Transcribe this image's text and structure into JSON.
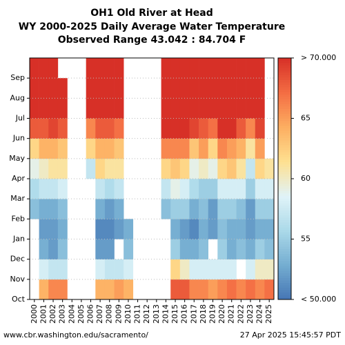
{
  "chart_data": {
    "type": "heatmap",
    "title": "OH1 Old River at Head",
    "subtitle": "WY 2000-2025 Daily Average Water Temperature",
    "annotation": "Observed Range 43.042 : 84.704 F",
    "source": "www.cbr.washington.edu/sacramento/",
    "timestamp": "27 Apr 2025 15:45:57 PDT",
    "x": [
      "2000",
      "2001",
      "2002",
      "2003",
      "2004",
      "2005",
      "2006",
      "2007",
      "2008",
      "2009",
      "2010",
      "2011",
      "2012",
      "2013",
      "2014",
      "2015",
      "2016",
      "2017",
      "2018",
      "2019",
      "2020",
      "2021",
      "2022",
      "2023",
      "2024",
      "2025"
    ],
    "categories": [
      "Oct",
      "Nov",
      "Dec",
      "Jan",
      "Feb",
      "Mar",
      "Apr",
      "May",
      "Jun",
      "Jul",
      "Aug",
      "Sep"
    ],
    "values": [
      [
        null,
        null,
        null,
        null,
        54,
        56,
        59,
        62,
        68,
        72,
        72,
        72
      ],
      [
        64,
        58,
        53,
        52,
        53,
        57,
        60,
        64,
        68,
        72,
        72,
        72
      ],
      [
        66,
        57,
        52,
        52,
        53,
        57,
        61,
        64,
        69,
        72,
        72,
        72
      ],
      [
        66,
        57,
        54,
        53,
        54,
        58,
        61,
        63,
        68,
        72,
        72,
        null
      ],
      [
        null,
        null,
        null,
        null,
        null,
        null,
        null,
        null,
        null,
        null,
        null,
        null
      ],
      [
        null,
        null,
        null,
        null,
        null,
        null,
        null,
        null,
        null,
        null,
        null,
        null
      ],
      [
        null,
        null,
        null,
        null,
        null,
        null,
        57,
        62,
        66,
        72,
        72,
        72
      ],
      [
        64,
        58,
        52,
        51,
        53,
        57,
        62,
        64,
        68,
        72,
        72,
        72
      ],
      [
        64,
        57,
        52,
        51,
        52,
        56,
        61,
        64,
        68,
        72,
        72,
        72
      ],
      [
        65,
        57,
        null,
        52,
        53,
        57,
        61,
        63,
        67,
        72,
        72,
        72
      ],
      [
        64,
        58,
        54,
        53,
        null,
        null,
        null,
        null,
        null,
        null,
        null,
        null
      ],
      [
        null,
        null,
        null,
        null,
        null,
        null,
        null,
        null,
        null,
        null,
        null,
        null
      ],
      [
        null,
        null,
        null,
        null,
        null,
        null,
        null,
        null,
        null,
        null,
        null,
        null
      ],
      [
        null,
        null,
        null,
        null,
        null,
        null,
        null,
        null,
        null,
        null,
        null,
        null
      ],
      [
        null,
        null,
        null,
        null,
        54,
        57,
        62,
        66,
        70,
        72,
        72,
        72
      ],
      [
        68,
        62,
        55,
        53,
        55,
        59,
        63,
        66,
        70,
        72,
        72,
        72
      ],
      [
        68,
        60,
        53,
        52,
        55,
        58,
        62,
        66,
        70,
        72,
        72,
        72
      ],
      [
        66,
        58,
        53,
        51,
        53,
        56,
        59,
        63,
        69,
        72,
        72,
        70
      ],
      [
        66,
        58,
        54,
        53,
        54,
        55,
        60,
        65,
        68,
        72,
        72,
        71
      ],
      [
        65,
        58,
        null,
        52,
        52,
        55,
        59,
        62,
        67,
        71,
        72,
        71
      ],
      [
        66,
        58,
        55,
        54,
        55,
        58,
        62,
        66,
        70,
        72,
        72,
        72
      ],
      [
        67,
        58,
        53,
        53,
        55,
        58,
        63,
        65,
        70,
        71,
        72,
        72
      ],
      [
        66,
        null,
        54,
        53,
        54,
        58,
        61,
        64,
        68,
        70,
        70,
        70
      ],
      [
        67,
        58,
        53,
        52,
        52,
        55,
        57,
        61,
        66,
        71,
        72,
        72
      ],
      [
        66,
        60,
        55,
        53,
        55,
        58,
        62,
        65,
        69,
        72,
        72,
        72
      ],
      [
        67,
        60,
        54,
        53,
        55,
        58,
        61,
        null,
        null,
        null,
        null,
        null
      ]
    ],
    "zlim": [
      50,
      70
    ],
    "zticks": [
      {
        "value": 50,
        "label": "< 50.000"
      },
      55,
      60,
      65,
      {
        "value": 70,
        "label": "> 70.000"
      }
    ],
    "colormap": [
      "#4575b4",
      "#74add1",
      "#abd9e9",
      "#e0f3f8",
      "#fee090",
      "#fdae61",
      "#f46d43",
      "#d73027"
    ],
    "grid": true
  }
}
